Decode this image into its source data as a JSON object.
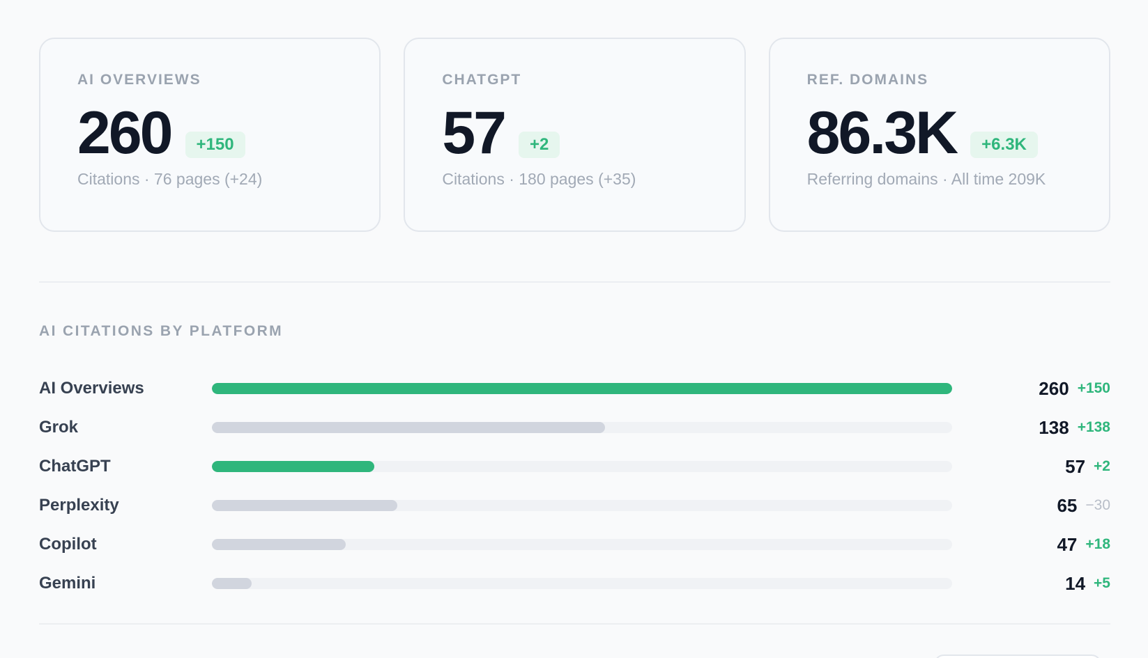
{
  "cards": [
    {
      "label": "AI OVERVIEWS",
      "value": "260",
      "delta": "+150",
      "sub": "Citations · 76 pages (+24)"
    },
    {
      "label": "CHATGPT",
      "value": "57",
      "delta": "+2",
      "sub": "Citations · 180 pages (+35)"
    },
    {
      "label": "REF. DOMAINS",
      "value": "86.3K",
      "delta": "+6.3K",
      "sub": "Referring domains · All time 209K"
    }
  ],
  "platforms": {
    "title": "AI CITATIONS BY PLATFORM",
    "max": 260,
    "colors": {
      "highlight": "#2fb67c",
      "muted": "#d1d5de",
      "track": "#f0f2f5",
      "positive": "#2fb67c",
      "negative": "#b8bec8"
    },
    "rows": [
      {
        "name": "AI Overviews",
        "value": "260",
        "delta": "+150",
        "count": 260,
        "highlight": true,
        "trend": "pos"
      },
      {
        "name": "Grok",
        "value": "138",
        "delta": "+138",
        "count": 138,
        "highlight": false,
        "trend": "pos"
      },
      {
        "name": "ChatGPT",
        "value": "57",
        "delta": "+2",
        "count": 57,
        "highlight": true,
        "trend": "pos"
      },
      {
        "name": "Perplexity",
        "value": "65",
        "delta": "−30",
        "count": 65,
        "highlight": false,
        "trend": "neg"
      },
      {
        "name": "Copilot",
        "value": "47",
        "delta": "+18",
        "count": 47,
        "highlight": false,
        "trend": "pos"
      },
      {
        "name": "Gemini",
        "value": "14",
        "delta": "+5",
        "count": 14,
        "highlight": false,
        "trend": "pos"
      }
    ]
  }
}
